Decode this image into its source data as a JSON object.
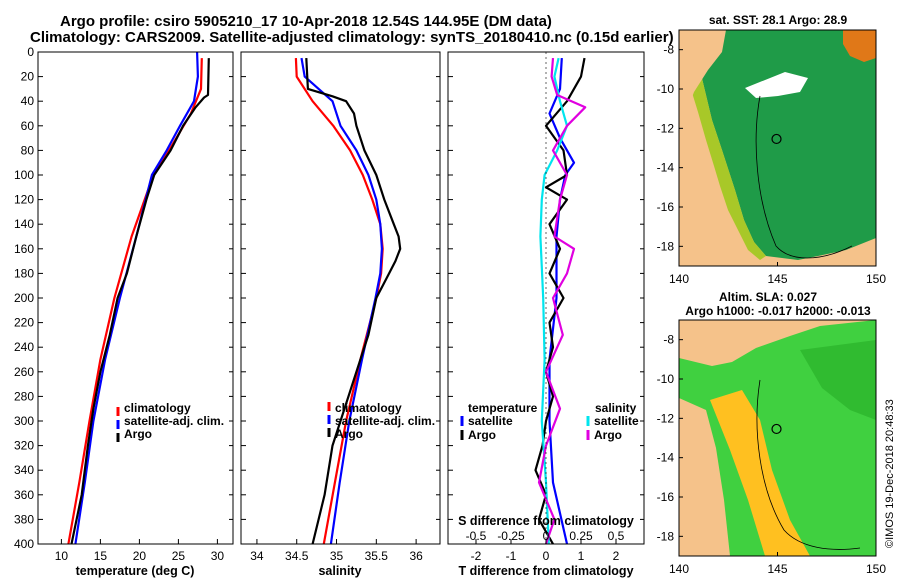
{
  "header": {
    "line1": "Argo profile: csiro 5905210_17 10-Apr-2018 12.54S 144.95E (DM data)",
    "line2": "Climatology: CARS2009. Satellite-adjusted climatology: synTS_20180410.nc (0.15d earlier)"
  },
  "credit": "©IMOS 19-Dec-2018 20:48:33",
  "colors": {
    "climatology": "#ff0000",
    "satellite": "#0000ff",
    "argo": "#000000",
    "sal_satellite": "#00e5ee",
    "sal_argo": "#e000e0",
    "land": "#f5c28a",
    "sst_low": "#1f9b48",
    "sst_high": "#e07818",
    "sla_mid": "#40d040",
    "sla_high": "#ffc020"
  },
  "legends": {
    "temp": [
      "climatology",
      "satellite-adj. clim.",
      "Argo"
    ],
    "sal": [
      "climatology",
      "satellite-adj. clim.",
      "Argo"
    ],
    "diff_temp_title": "temperature",
    "diff_temp": [
      "satellite",
      "Argo"
    ],
    "diff_sal_title": "salinity",
    "diff_sal": [
      "satellite",
      "Argo"
    ]
  },
  "maps": {
    "sst_title": "sat. SST: 28.1  Argo: 28.9",
    "sla_title1": "Altim. SLA: 0.027",
    "sla_title2": "Argo h1000: -0.017  h2000: -0.013",
    "xlim": [
      140,
      150
    ],
    "ylim": [
      -19,
      -7
    ],
    "xticks": [
      140,
      145,
      150
    ],
    "yticks": [
      -8,
      -10,
      -12,
      -14,
      -16,
      -18
    ],
    "argo_position": {
      "lon": 144.95,
      "lat": -12.54
    }
  },
  "chart_data": [
    {
      "type": "line",
      "title": "",
      "xlabel": "temperature (deg C)",
      "ylabel": "",
      "xlim": [
        7,
        32
      ],
      "ylim": [
        400,
        0
      ],
      "xticks": [
        10,
        15,
        20,
        25,
        30
      ],
      "yticks": [
        0,
        20,
        40,
        60,
        80,
        100,
        120,
        140,
        160,
        180,
        200,
        220,
        240,
        260,
        280,
        300,
        320,
        340,
        360,
        380,
        400
      ],
      "series": [
        {
          "name": "climatology",
          "color": "#ff0000",
          "depth": [
            5,
            30,
            50,
            80,
            100,
            150,
            200,
            250,
            300,
            350,
            400
          ],
          "values": [
            28.0,
            27.9,
            26.6,
            23.8,
            21.8,
            19.0,
            16.8,
            15.0,
            13.6,
            12.3,
            10.9
          ]
        },
        {
          "name": "satellite-adj. clim.",
          "color": "#0000ff",
          "depth": [
            0,
            20,
            40,
            60,
            80,
            100,
            150,
            200,
            250,
            300,
            350,
            400
          ],
          "values": [
            27.4,
            27.5,
            27.0,
            25.2,
            23.5,
            21.6,
            19.6,
            17.5,
            15.6,
            14.1,
            13.0,
            11.8
          ]
        },
        {
          "name": "Argo",
          "color": "#000000",
          "depth": [
            5,
            35,
            37,
            45,
            60,
            80,
            100,
            120,
            150,
            180,
            200,
            230,
            260,
            290,
            320,
            360,
            400
          ],
          "values": [
            28.9,
            28.8,
            28.3,
            27.2,
            25.6,
            24.0,
            21.9,
            20.9,
            19.6,
            18.4,
            17.2,
            16.2,
            15.0,
            14.1,
            13.4,
            12.6,
            11.3
          ]
        }
      ]
    },
    {
      "type": "line",
      "title": "",
      "xlabel": "salinity",
      "ylabel": "",
      "xlim": [
        33.8,
        36.3
      ],
      "ylim": [
        400,
        0
      ],
      "xticks": [
        34,
        34.5,
        35,
        35.5,
        36
      ],
      "yticks": [
        0,
        20,
        40,
        60,
        80,
        100,
        120,
        140,
        160,
        180,
        200,
        220,
        240,
        260,
        280,
        300,
        320,
        340,
        360,
        380,
        400
      ],
      "series": [
        {
          "name": "climatology",
          "color": "#ff0000",
          "depth": [
            5,
            20,
            40,
            60,
            80,
            100,
            120,
            140,
            160,
            180,
            200,
            250,
            300,
            350,
            400
          ],
          "values": [
            34.49,
            34.5,
            34.7,
            34.96,
            35.17,
            35.33,
            35.45,
            35.55,
            35.58,
            35.56,
            35.5,
            35.3,
            35.12,
            34.98,
            34.84
          ]
        },
        {
          "name": "satellite-adj. clim.",
          "color": "#0000ff",
          "depth": [
            5,
            20,
            40,
            60,
            80,
            100,
            120,
            140,
            160,
            180,
            200,
            250,
            300,
            350,
            400
          ],
          "values": [
            34.56,
            34.6,
            34.95,
            35.05,
            35.25,
            35.4,
            35.5,
            35.55,
            35.57,
            35.55,
            35.49,
            35.32,
            35.16,
            35.04,
            34.93
          ]
        },
        {
          "name": "Argo",
          "color": "#000000",
          "depth": [
            5,
            30,
            36,
            40,
            50,
            60,
            80,
            100,
            120,
            140,
            150,
            160,
            170,
            180,
            200,
            230,
            260,
            290,
            320,
            360,
            400
          ],
          "values": [
            34.62,
            34.64,
            34.95,
            35.12,
            35.22,
            35.25,
            35.35,
            35.5,
            35.6,
            35.72,
            35.78,
            35.8,
            35.74,
            35.66,
            35.5,
            35.4,
            35.25,
            35.1,
            34.95,
            34.85,
            34.7
          ]
        }
      ]
    },
    {
      "type": "line",
      "title": "",
      "xlabel": "T difference from climatology",
      "x2label": "S difference from climatology",
      "ylabel": "",
      "xlim": [
        -2.8,
        2.8
      ],
      "x2lim": [
        -0.7,
        0.7
      ],
      "ylim": [
        400,
        0
      ],
      "xticks": [
        -2,
        -1,
        0,
        1,
        2
      ],
      "x2ticks": [
        -0.5,
        -0.25,
        0,
        0.25,
        0.5
      ],
      "x2ticklabels": [
        "-0.5",
        "-0.25",
        "0",
        "0.25",
        "0.5"
      ],
      "yticks": [
        0,
        20,
        40,
        60,
        80,
        100,
        120,
        140,
        160,
        180,
        200,
        220,
        240,
        260,
        280,
        300,
        320,
        340,
        360,
        380,
        400
      ],
      "series": [
        {
          "name": "temperature satellite",
          "color": "#0000ff",
          "axis": "T",
          "depth": [
            5,
            30,
            50,
            70,
            90,
            100,
            120,
            150,
            200,
            250,
            300,
            350,
            400
          ],
          "values": [
            0.45,
            0.4,
            0.1,
            0.4,
            0.8,
            0.55,
            0.4,
            0.3,
            0.3,
            0.1,
            0.1,
            0.2,
            0.6
          ]
        },
        {
          "name": "temperature Argo",
          "color": "#000000",
          "axis": "T",
          "depth": [
            5,
            20,
            40,
            60,
            80,
            100,
            110,
            120,
            140,
            160,
            180,
            200,
            220,
            240,
            260,
            280,
            300,
            320,
            340,
            360,
            380,
            400
          ],
          "values": [
            1.1,
            1.0,
            0.6,
            0.0,
            0.5,
            0.6,
            0.0,
            0.6,
            0.1,
            0.4,
            0.1,
            0.5,
            0.1,
            0.2,
            0.0,
            0.2,
            0.0,
            -0.1,
            -0.3,
            0.0,
            -0.2,
            0.2
          ]
        },
        {
          "name": "salinity satellite",
          "color": "#00e5ee",
          "axis": "S",
          "depth": [
            5,
            20,
            40,
            60,
            80,
            100,
            120,
            150,
            200,
            250,
            300,
            350,
            400
          ],
          "values": [
            0.09,
            0.06,
            0.1,
            0.15,
            0.08,
            -0.01,
            -0.03,
            -0.04,
            -0.02,
            -0.01,
            -0.03,
            0.0,
            0.02
          ]
        },
        {
          "name": "salinity Argo",
          "color": "#e000e0",
          "axis": "S",
          "depth": [
            5,
            20,
            35,
            45,
            60,
            80,
            100,
            120,
            150,
            160,
            180,
            200,
            230,
            260,
            290,
            320,
            350,
            380,
            400
          ],
          "values": [
            0.05,
            0.04,
            0.08,
            0.28,
            0.15,
            0.05,
            0.15,
            0.1,
            0.06,
            0.2,
            0.15,
            0.05,
            0.12,
            0.0,
            0.1,
            0.0,
            -0.05,
            0.06,
            0.0
          ]
        }
      ]
    }
  ]
}
